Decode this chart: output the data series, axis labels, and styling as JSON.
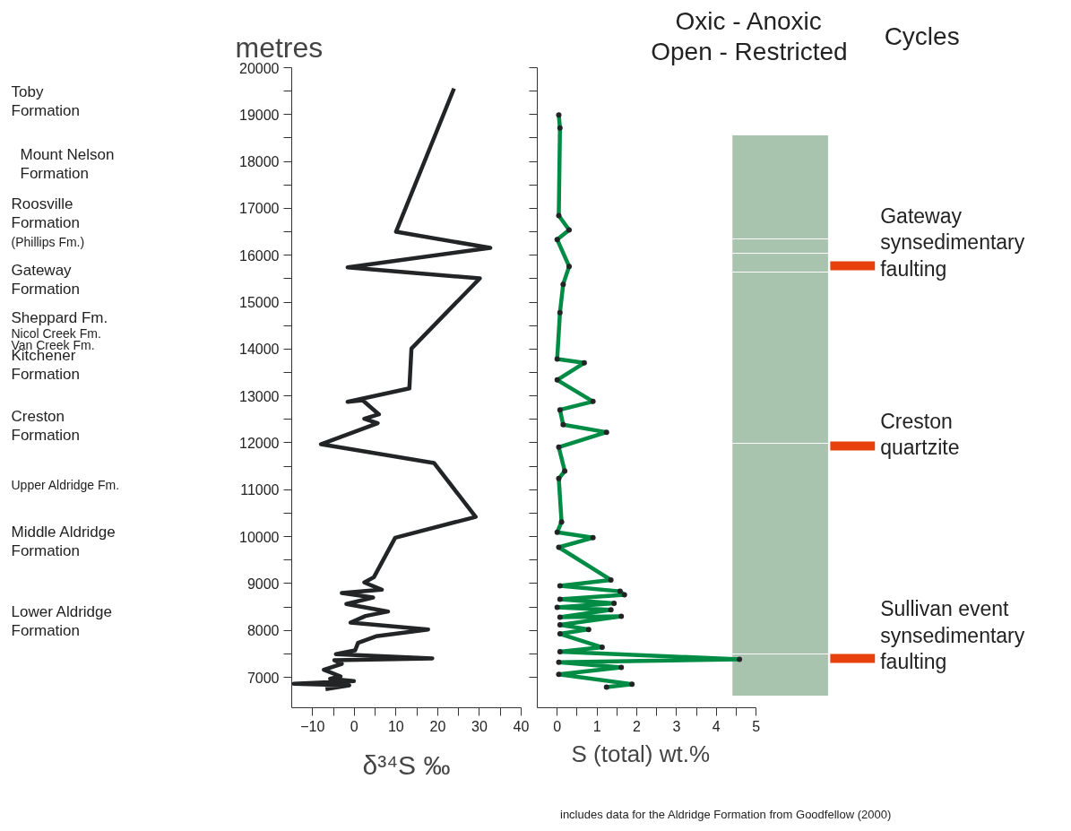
{
  "chart_data": [
    {
      "type": "other",
      "annotations": [
        "Toby\nFormation",
        "Mount Nelson\nFormation",
        "Roosville\nFormation",
        "(Phillips Fm.)",
        "Gateway\nFormation",
        "Sheppard Fm.",
        "Nicol Creek Fm.",
        "Van Creek Fm.",
        "Kitchener\nFormation",
        "Creston\nFormation",
        "Upper Aldridge Fm.",
        "Middle Aldridge\nFormation",
        "Lower Aldridge\nFormation"
      ]
    },
    {
      "type": "line",
      "ylabel": "metres",
      "xlabel": "δ³⁴S ‰",
      "xlim": [
        -15,
        40
      ],
      "xticks": [
        -10,
        {
          "value": -5,
          "label": null
        },
        0,
        {
          "value": 5,
          "label": null
        },
        10,
        {
          "value": 15,
          "label": null
        },
        20,
        {
          "value": 25,
          "label": null
        },
        30,
        {
          "value": 35,
          "label": null
        },
        40
      ],
      "ylim": [
        6350,
        20000
      ],
      "yticks": [
        7000,
        {
          "value": 7500,
          "label": null
        },
        8000,
        {
          "value": 8500,
          "label": null
        },
        9000,
        {
          "value": 9500,
          "label": null
        },
        10000,
        {
          "value": 10500,
          "label": null
        },
        11000,
        {
          "value": 11500,
          "label": null
        },
        12000,
        {
          "value": 12500,
          "label": null
        },
        13000,
        {
          "value": 13500,
          "label": null
        },
        14000,
        {
          "value": 14500,
          "label": null
        },
        15000,
        {
          "value": 15500,
          "label": null
        },
        16000,
        {
          "value": 16500,
          "label": null
        },
        17000,
        {
          "value": 17500,
          "label": null
        },
        18000,
        {
          "value": 18500,
          "label": null
        },
        19000,
        {
          "value": 19500,
          "label": null
        },
        20000
      ],
      "series": [
        {
          "color": "#222426",
          "x": [
            23.9,
            10.0,
            32.6,
            -1.6,
            30.1,
            13.7,
            13.2,
            -1.6,
            2.0,
            5.9,
            2.4,
            5.6,
            -8.0,
            19.1,
            29.1,
            9.8,
            4.7,
            2.4,
            6.6,
            -3.0,
            4.5,
            -1.9,
            8.1,
            2.7,
            -0.9,
            17.7,
            5.2,
            0.9,
            0.2,
            -4.4,
            18.7,
            -4.8,
            -3.0,
            -7.3,
            -3.3,
            -5.8,
            -0.1,
            -14.5,
            -1.2,
            -6.9
          ],
          "values": [
            19555,
            16500,
            16157,
            15743,
            15507,
            14010,
            13160,
            12875,
            12907,
            12607,
            12513,
            12418,
            11970,
            11570,
            10421,
            9976,
            9134,
            9021,
            8867,
            8796,
            8700,
            8562,
            8402,
            8307,
            8166,
            8020,
            7874,
            7733,
            7573,
            7491,
            7401,
            7363,
            7286,
            7159,
            7019,
            6968,
            6917,
            6860,
            6829,
            6745
          ]
        }
      ]
    },
    {
      "type": "line",
      "xlabel": "S (total) wt.%",
      "xlim": [
        -0.5,
        5
      ],
      "xticks": [
        0,
        {
          "value": 0.5,
          "label": null
        },
        1,
        {
          "value": 1.5,
          "label": null
        },
        2,
        {
          "value": 2.5,
          "label": null
        },
        3,
        {
          "value": 3.5,
          "label": null
        },
        4,
        {
          "value": 4.5,
          "label": null
        },
        5
      ],
      "ylim": [
        6350,
        20000
      ],
      "yticks": [
        7000,
        {
          "value": 7500,
          "label": null
        },
        8000,
        {
          "value": 8500,
          "label": null
        },
        9000,
        {
          "value": 9500,
          "label": null
        },
        10000,
        {
          "value": 10500,
          "label": null
        },
        11000,
        {
          "value": 11500,
          "label": null
        },
        12000,
        {
          "value": 12500,
          "label": null
        },
        13000,
        {
          "value": 13500,
          "label": null
        },
        14000,
        {
          "value": 14500,
          "label": null
        },
        15000,
        {
          "value": 15500,
          "label": null
        },
        16000,
        {
          "value": 16500,
          "label": null
        },
        17000,
        {
          "value": 17500,
          "label": null
        },
        18000,
        {
          "value": 18500,
          "label": null
        },
        19000,
        {
          "value": 19500,
          "label": null
        },
        20000
      ],
      "tick_labels": "x",
      "annotations": [
        "includes data  for the Aldridge Formation from Goodfellow (2000)"
      ],
      "ref_lines": [
        {
          "axis": "y",
          "value": 15775,
          "label": "Gateway\nsynsedimentary\nfaulting",
          "color": "#e8400c"
        },
        {
          "axis": "y",
          "value": 11932,
          "label": "Creston\nquartzite",
          "color": "#e8400c"
        },
        {
          "axis": "y",
          "value": 7401,
          "label": "Sullivan event\nsynsedimentary\nfaulting",
          "color": "#e8400c"
        }
      ],
      "bands": [
        {
          "axis": "y",
          "from": 16348,
          "to": 18566,
          "color": "#a9c4ae"
        },
        {
          "axis": "y",
          "from": 16042,
          "to": 16348,
          "color": "#a9c4ae"
        },
        {
          "axis": "y",
          "from": 15641,
          "to": 16042,
          "color": "#a9c4ae"
        },
        {
          "axis": "y",
          "from": 11989,
          "to": 15641,
          "color": "#a9c4ae"
        },
        {
          "axis": "y",
          "from": 7496,
          "to": 11989,
          "color": "#a9c4ae"
        },
        {
          "axis": "y",
          "from": 6598,
          "to": 7496,
          "color": "#a9c4ae"
        }
      ],
      "series": [
        {
          "color": "#008c45",
          "x": [
            0.04,
            0.07,
            0.04,
            0.3,
            0,
            0.3,
            0.15,
            0.07,
            0,
            0.68,
            0,
            0.9,
            0.07,
            0.15,
            1.24,
            0.04,
            0.19,
            0.04,
            0.11,
            0,
            0.9,
            0.04,
            1.35,
            0.07,
            1.58,
            1.69,
            0.07,
            1.43,
            0,
            1.35,
            0.07,
            1.61,
            0.07,
            0.79,
            0.07,
            1.13,
            0.07,
            4.58,
            0.04,
            1.61,
            0.04,
            1.88,
            1.24
          ],
          "values": [
            18993,
            18713,
            16845,
            16540,
            16335,
            15762,
            15380,
            14776,
            13787,
            13704,
            13340,
            12882,
            12703,
            12385,
            12226,
            11908,
            11397,
            11238,
            10314,
            10092,
            9976,
            9772,
            9075,
            8948,
            8833,
            8757,
            8661,
            8578,
            8489,
            8438,
            8279,
            8298,
            8118,
            8020,
            7926,
            7639,
            7543,
            7383,
            7320,
            7210,
            7063,
            6853,
            6789
          ]
        },
        {
          "type": "scatter",
          "color": "#222426",
          "x": [
            0.04,
            0.07,
            0.04,
            0.3,
            0,
            0.3,
            0.15,
            0.07,
            0,
            0.68,
            0,
            0.9,
            0.07,
            0.15,
            1.24,
            0.04,
            0.19,
            0.04,
            0.11,
            0,
            0.9,
            0.04,
            1.35,
            0.07,
            1.58,
            1.69,
            0.07,
            1.43,
            0,
            1.35,
            0.07,
            1.61,
            0.07,
            0.79,
            0.07,
            1.13,
            0.07,
            4.58,
            0.04,
            1.61,
            0.04,
            1.88,
            1.24
          ],
          "values": [
            18993,
            18713,
            16845,
            16540,
            16335,
            15762,
            15380,
            14776,
            13787,
            13704,
            13340,
            12882,
            12703,
            12385,
            12226,
            11908,
            11397,
            11238,
            10314,
            10092,
            9976,
            9772,
            9075,
            8948,
            8833,
            8757,
            8661,
            8578,
            8489,
            8438,
            8279,
            8298,
            8118,
            8020,
            7926,
            7639,
            7543,
            7383,
            7320,
            7210,
            7063,
            6853,
            6789
          ]
        }
      ]
    },
    {
      "type": "other",
      "title": "Oxic - Anoxic\nOpen - Restricted",
      "subtitle": "Cycles"
    }
  ]
}
